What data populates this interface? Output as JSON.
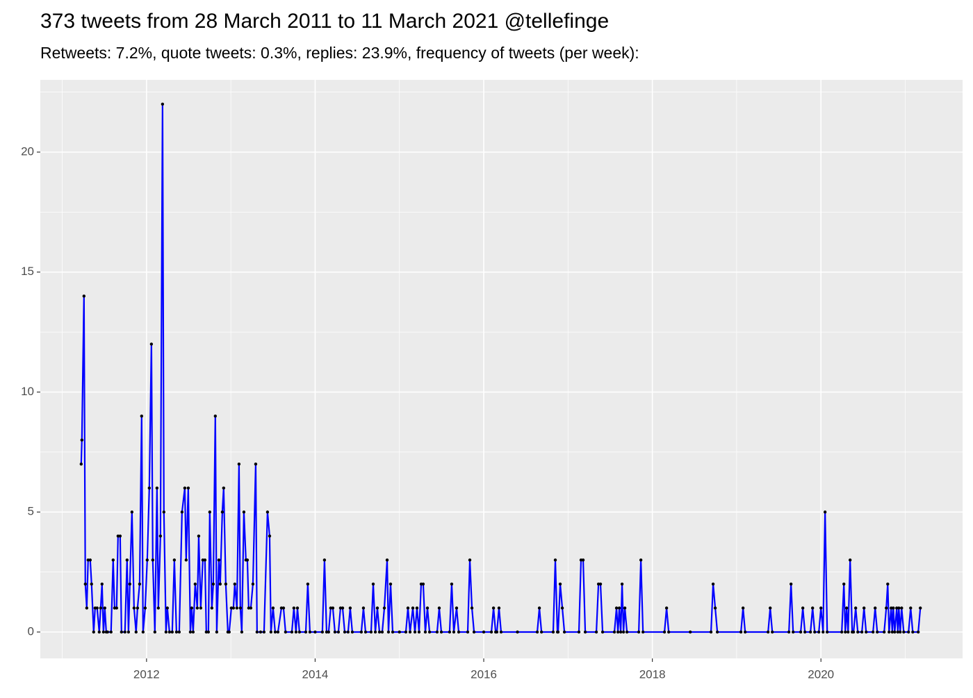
{
  "chart_data": {
    "type": "line",
    "title": "373 tweets from 28 March 2011 to 11 March 2021 @tellefinge",
    "subtitle": "Retweets: 7.2%, quote tweets: 0.3%, replies: 23.9%, frequency of tweets (per week):",
    "x": [
      2011.225,
      2011.233,
      2011.258,
      2011.274,
      2011.291,
      2011.307,
      2011.332,
      2011.348,
      2011.373,
      2011.39,
      2011.414,
      2011.439,
      2011.456,
      2011.472,
      2011.489,
      2011.505,
      2011.522,
      2011.538,
      2011.579,
      2011.604,
      2011.621,
      2011.645,
      2011.662,
      2011.687,
      2011.703,
      2011.744,
      2011.769,
      2011.786,
      2011.802,
      2011.827,
      2011.852,
      2011.876,
      2011.893,
      2011.918,
      2011.942,
      2011.959,
      2011.984,
      2012.008,
      2012.033,
      2012.058,
      2012.074,
      2012.099,
      2012.124,
      2012.14,
      2012.165,
      2012.19,
      2012.206,
      2012.231,
      2012.247,
      2012.272,
      2012.305,
      2012.33,
      2012.355,
      2012.388,
      2012.421,
      2012.454,
      2012.47,
      2012.495,
      2012.52,
      2012.536,
      2012.553,
      2012.577,
      2012.602,
      2012.619,
      2012.643,
      2012.668,
      2012.693,
      2012.709,
      2012.734,
      2012.75,
      2012.775,
      2012.792,
      2012.816,
      2012.833,
      2012.858,
      2012.874,
      2012.899,
      2012.915,
      2012.94,
      2012.965,
      2012.981,
      2013.006,
      2013.031,
      2013.047,
      2013.072,
      2013.097,
      2013.113,
      2013.13,
      2013.155,
      2013.179,
      2013.196,
      2013.212,
      2013.237,
      2013.262,
      2013.295,
      2013.311,
      2013.353,
      2013.394,
      2013.435,
      2013.46,
      2013.476,
      2013.501,
      2013.526,
      2013.559,
      2013.6,
      2013.625,
      2013.649,
      2013.724,
      2013.748,
      2013.773,
      2013.79,
      2013.814,
      2013.889,
      2013.913,
      2013.938,
      2014.0,
      2014.086,
      2014.111,
      2014.136,
      2014.16,
      2014.185,
      2014.21,
      2014.235,
      2014.276,
      2014.301,
      2014.326,
      2014.351,
      2014.391,
      2014.416,
      2014.441,
      2014.548,
      2014.573,
      2014.598,
      2014.664,
      2014.689,
      2014.714,
      2014.738,
      2014.763,
      2014.796,
      2014.821,
      2014.854,
      2014.87,
      2014.895,
      2014.92,
      2015.0,
      2015.076,
      2015.101,
      2015.126,
      2015.159,
      2015.184,
      2015.208,
      2015.233,
      2015.258,
      2015.282,
      2015.307,
      2015.332,
      2015.357,
      2015.447,
      2015.472,
      2015.497,
      2015.595,
      2015.62,
      2015.645,
      2015.678,
      2015.703,
      2015.81,
      2015.835,
      2015.86,
      2015.885,
      2016.0,
      2016.091,
      2016.116,
      2016.141,
      2016.156,
      2016.181,
      2016.206,
      2016.4,
      2016.635,
      2016.66,
      2016.685,
      2016.824,
      2016.849,
      2016.874,
      2016.882,
      2016.907,
      2016.932,
      2016.957,
      2017.129,
      2017.154,
      2017.179,
      2017.204,
      2017.336,
      2017.361,
      2017.385,
      2017.41,
      2017.55,
      2017.575,
      2017.592,
      2017.608,
      2017.625,
      2017.641,
      2017.658,
      2017.674,
      2017.699,
      2017.839,
      2017.864,
      2017.889,
      2018.144,
      2018.169,
      2018.194,
      2018.45,
      2018.696,
      2018.721,
      2018.746,
      2018.771,
      2019.051,
      2019.076,
      2019.101,
      2019.373,
      2019.398,
      2019.423,
      2019.62,
      2019.645,
      2019.67,
      2019.76,
      2019.785,
      2019.81,
      2019.876,
      2019.901,
      2019.926,
      2019.975,
      2020.0,
      2020.025,
      2020.049,
      2020.074,
      2020.247,
      2020.272,
      2020.289,
      2020.305,
      2020.322,
      2020.346,
      2020.371,
      2020.387,
      2020.412,
      2020.437,
      2020.486,
      2020.511,
      2020.536,
      2020.618,
      2020.643,
      2020.668,
      2020.75,
      2020.775,
      2020.792,
      2020.808,
      2020.833,
      2020.846,
      2020.858,
      2020.875,
      2020.899,
      2020.912,
      2020.924,
      2020.94,
      2020.957,
      2020.982,
      2021.039,
      2021.064,
      2021.089,
      2021.154,
      2021.179
    ],
    "values": [
      7,
      8,
      14,
      2,
      1,
      3,
      3,
      2,
      0,
      1,
      1,
      0,
      1,
      2,
      0,
      1,
      0,
      0,
      0,
      3,
      1,
      1,
      4,
      4,
      0,
      0,
      3,
      0,
      2,
      5,
      1,
      0,
      1,
      2,
      9,
      0,
      1,
      3,
      6,
      12,
      3,
      0,
      6,
      1,
      4,
      22,
      5,
      0,
      1,
      0,
      0,
      3,
      0,
      0,
      5,
      6,
      3,
      6,
      0,
      1,
      0,
      2,
      1,
      4,
      1,
      3,
      3,
      0,
      0,
      5,
      1,
      2,
      9,
      0,
      3,
      2,
      5,
      6,
      2,
      0,
      0,
      1,
      1,
      2,
      1,
      7,
      1,
      0,
      5,
      3,
      3,
      1,
      1,
      2,
      7,
      0,
      0,
      0,
      5,
      4,
      0,
      1,
      0,
      0,
      1,
      1,
      0,
      0,
      1,
      0,
      1,
      0,
      0,
      2,
      0,
      0,
      0,
      3,
      0,
      0,
      1,
      1,
      0,
      0,
      1,
      1,
      0,
      0,
      1,
      0,
      0,
      1,
      0,
      0,
      2,
      0,
      1,
      0,
      0,
      1,
      3,
      0,
      2,
      0,
      0,
      0,
      1,
      0,
      1,
      0,
      1,
      0,
      2,
      2,
      0,
      1,
      0,
      0,
      1,
      0,
      0,
      2,
      0,
      1,
      0,
      0,
      3,
      1,
      0,
      0,
      0,
      1,
      0,
      0,
      1,
      0,
      0,
      0,
      1,
      0,
      0,
      3,
      0,
      0,
      2,
      1,
      0,
      0,
      3,
      3,
      0,
      0,
      2,
      2,
      0,
      0,
      1,
      0,
      1,
      0,
      2,
      0,
      1,
      0,
      0,
      3,
      0,
      0,
      1,
      0,
      0,
      0,
      2,
      1,
      0,
      0,
      1,
      0,
      0,
      1,
      0,
      0,
      2,
      0,
      0,
      1,
      0,
      0,
      1,
      0,
      0,
      1,
      0,
      5,
      0,
      0,
      2,
      0,
      1,
      0,
      3,
      0,
      0,
      1,
      0,
      0,
      1,
      0,
      0,
      1,
      0,
      0,
      1,
      2,
      0,
      1,
      0,
      1,
      0,
      1,
      0,
      1,
      0,
      1,
      0,
      0,
      1,
      0,
      0,
      1
    ],
    "color": "#0000ff",
    "marker_color": "#000000",
    "xlim": [
      2010.74,
      2021.68
    ],
    "xticks": [
      2012,
      2014,
      2016,
      2018,
      2020
    ],
    "ylim": [
      -1.1,
      23.01
    ],
    "yticks": [
      0,
      5,
      10,
      15,
      20
    ],
    "grid": true
  }
}
